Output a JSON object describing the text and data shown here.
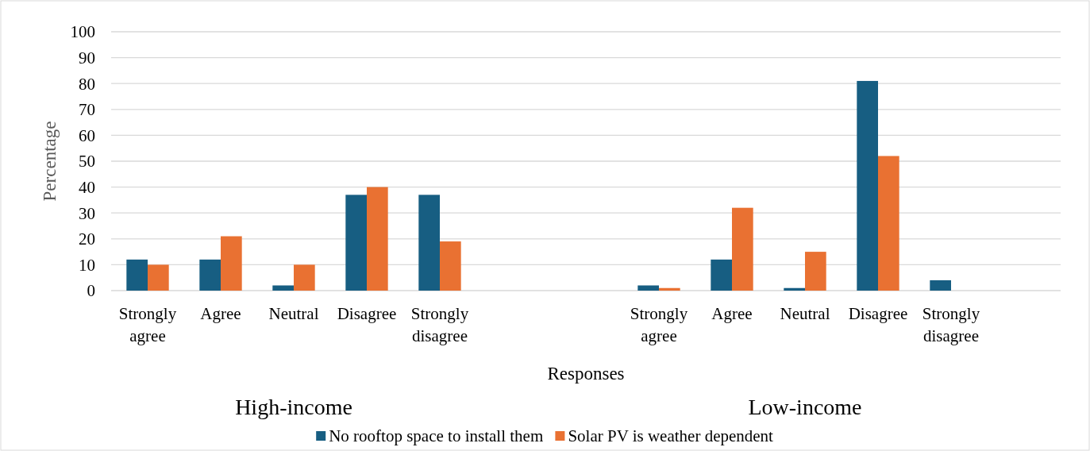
{
  "chart_data": {
    "type": "bar",
    "xlabel": "Responses",
    "ylabel": "Percentage",
    "categories": [
      "Strongly agree",
      "Agree",
      "Neutral",
      "Disagree",
      "Strongly disagree",
      null,
      null,
      "Strongly agree",
      "Agree",
      "Neutral",
      "Disagree",
      "Strongly disagree",
      null
    ],
    "series": [
      {
        "name": "No rooftop space to install them",
        "color": "#175e82",
        "values": [
          12,
          12,
          2,
          37,
          37,
          null,
          null,
          2,
          12,
          1,
          81,
          4,
          null
        ]
      },
      {
        "name": "Solar PV is weather dependent",
        "color": "#e97132",
        "values": [
          10,
          21,
          10,
          40,
          19,
          null,
          null,
          1,
          32,
          15,
          52,
          0,
          null
        ]
      }
    ],
    "ylim": [
      0,
      100
    ],
    "yticks": [
      0,
      10,
      20,
      30,
      40,
      50,
      60,
      70,
      80,
      90,
      100
    ],
    "grid": "y",
    "legend": "bottom",
    "annotations": [
      "High-income",
      "Low-income"
    ]
  }
}
